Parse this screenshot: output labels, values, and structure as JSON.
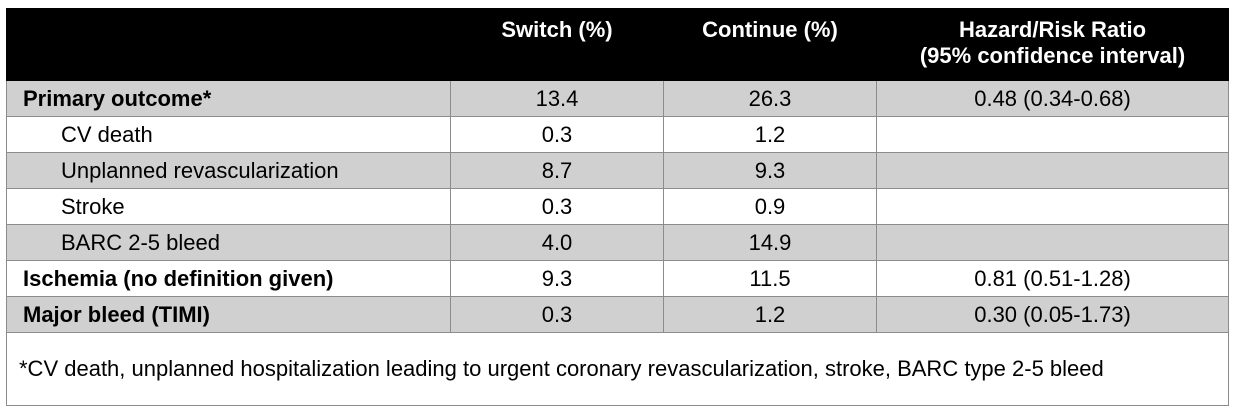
{
  "header": {
    "col0": "",
    "col1": "Switch (%)",
    "col2": "Continue (%)",
    "col3_line1": "Hazard/Risk Ratio",
    "col3_line2": "(95% confidence interval)"
  },
  "rows": [
    {
      "label": "Primary outcome*",
      "switch": "13.4",
      "continue": "26.3",
      "ratio": "0.48 (0.34-0.68)"
    },
    {
      "label": "CV death",
      "switch": "0.3",
      "continue": "1.2",
      "ratio": ""
    },
    {
      "label": "Unplanned revascularization",
      "switch": "8.7",
      "continue": "9.3",
      "ratio": ""
    },
    {
      "label": "Stroke",
      "switch": "0.3",
      "continue": "0.9",
      "ratio": ""
    },
    {
      "label": "BARC 2-5 bleed",
      "switch": "4.0",
      "continue": "14.9",
      "ratio": ""
    },
    {
      "label": "Ischemia (no definition given)",
      "switch": "9.3",
      "continue": "11.5",
      "ratio": "0.81 (0.51-1.28)"
    },
    {
      "label": "Major bleed (TIMI)",
      "switch": "0.3",
      "continue": "1.2",
      "ratio": "0.30 (0.05-1.73)"
    }
  ],
  "footnote": "*CV death, unplanned hospitalization leading to urgent coronary revascularization, stroke, BARC type 2-5 bleed",
  "colors": {
    "header_bg": "#000000",
    "header_text": "#ffffff",
    "shaded_row": "#d0d0d0",
    "border": "#8c8c8c"
  }
}
